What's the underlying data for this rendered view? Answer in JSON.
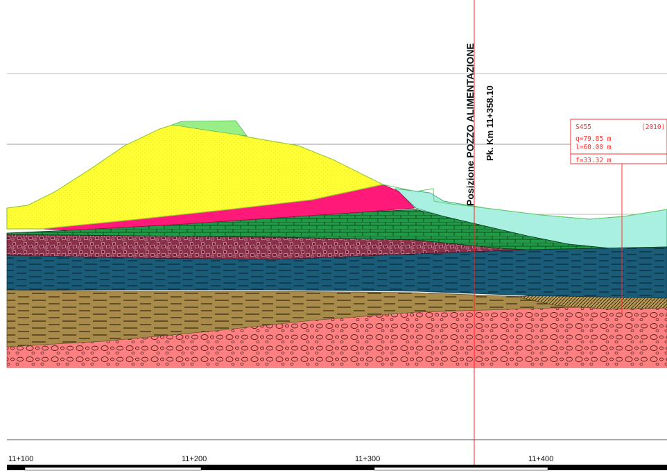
{
  "well": {
    "title": "Posizione POZZO ALIMENTAZIONE",
    "chainage": "Pk. Km 11+358.10"
  },
  "borehole": {
    "id": "S455",
    "year": "(2010)",
    "elevation": "q=79.85  m",
    "length": "l=60.00  m",
    "water_depth": "f=33.32  m"
  },
  "chainage_ticks": [
    "11+100",
    "11+200",
    "11+300",
    "11+400"
  ],
  "colors": {
    "fill_yellow": "#ffff33",
    "fill_magenta": "#ff1a7a",
    "fill_light_green": "#99ee88",
    "fill_aqua": "#aaf0e0",
    "fill_green_limestone": "#1f9a45",
    "fill_maroon_breccia": "#8a3048",
    "fill_teal": "#1a5c78",
    "fill_khaki": "#a88a4a",
    "fill_pink_gravel": "#ff8080",
    "reference_line": "#ff2020",
    "grid_line": "#bbbbbb"
  }
}
